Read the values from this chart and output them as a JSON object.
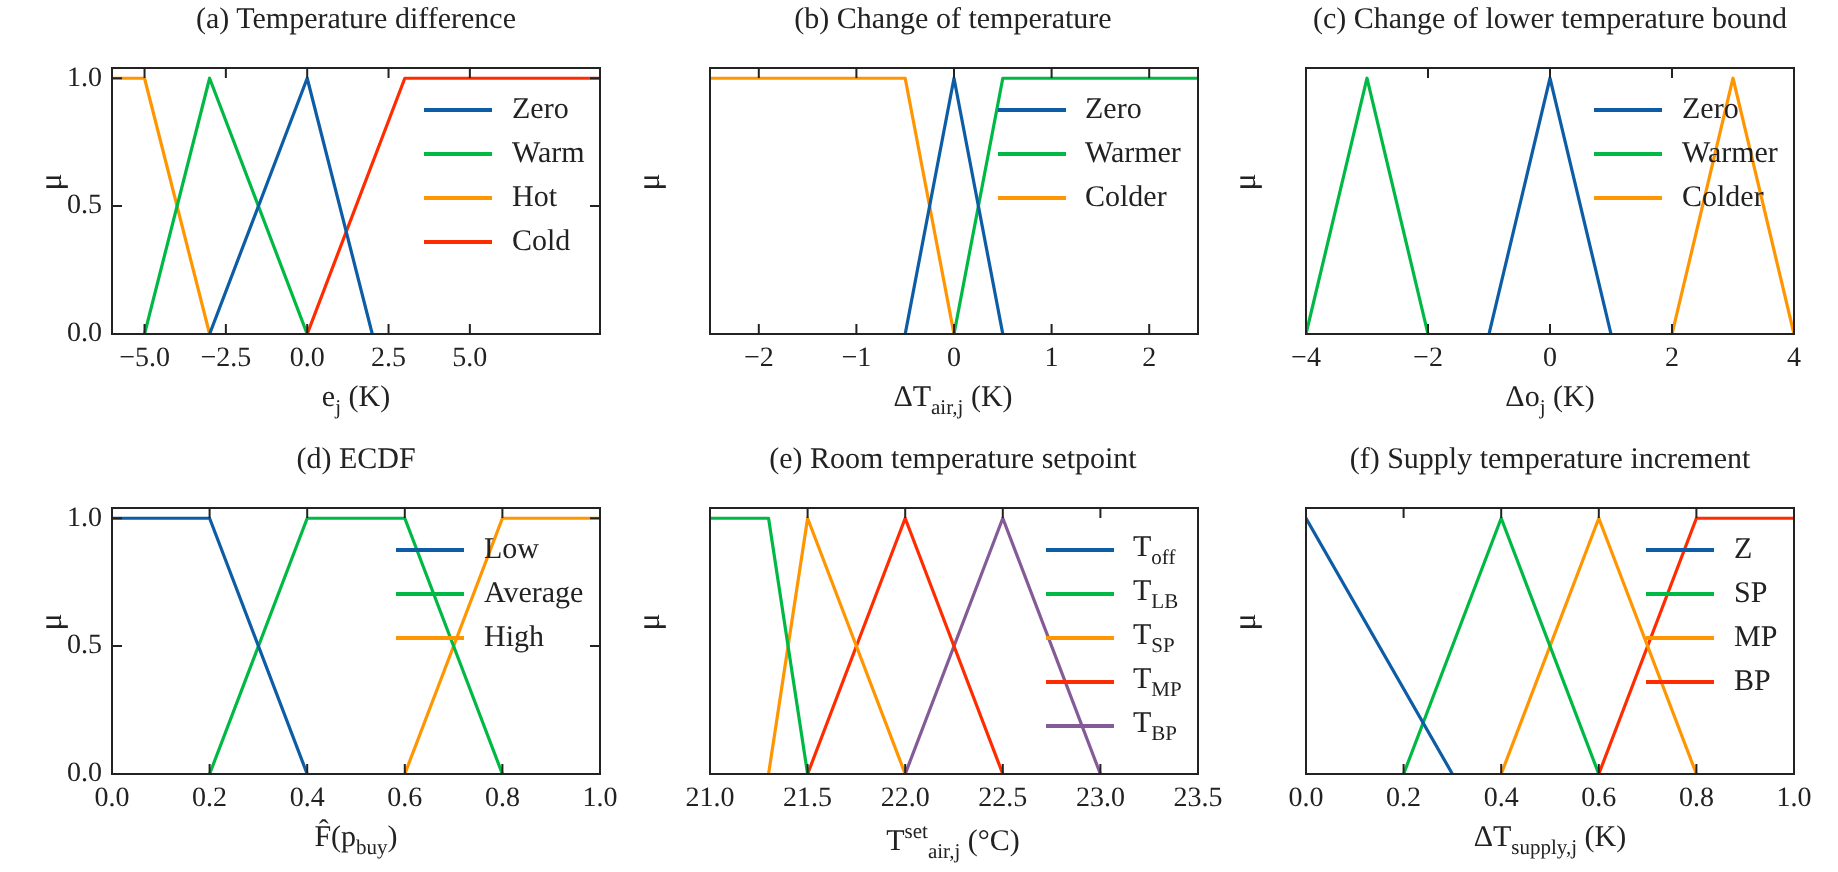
{
  "chart_data": [
    {
      "type": "line",
      "title": "(a) Temperature difference",
      "xlabel": "e$_{j}$ (K)",
      "ylabel": "μ",
      "xlim": [
        -6,
        9
      ],
      "xticks": [
        {
          "value": -5,
          "label": "−5.0"
        },
        {
          "value": -2.5,
          "label": "−2.5"
        },
        {
          "value": 0,
          "label": "0.0"
        },
        {
          "value": 2.5,
          "label": "2.5"
        },
        {
          "value": 5,
          "label": "5.0"
        }
      ],
      "ylim": [
        0,
        1.04
      ],
      "yticks": [
        {
          "value": 0,
          "label": "0.0"
        },
        {
          "value": 0.5,
          "label": "0.5"
        },
        {
          "value": 1,
          "label": "1.0"
        }
      ],
      "legend": "top right",
      "line_style": "solid",
      "series": [
        {
          "name": "Zero",
          "color": "#0c5da5",
          "x": [
            -3,
            0,
            2
          ],
          "values": [
            0,
            1,
            0
          ]
        },
        {
          "name": "Warm",
          "color": "#00b945",
          "x": [
            -5,
            -3,
            0
          ],
          "values": [
            0,
            1,
            0
          ]
        },
        {
          "name": "Hot",
          "color": "#ff9500",
          "x": [
            -6,
            -5,
            -3
          ],
          "values": [
            1,
            1,
            0
          ]
        },
        {
          "name": "Cold",
          "color": "#ff2c00",
          "x": [
            0,
            3,
            9
          ],
          "values": [
            0,
            1,
            1
          ]
        }
      ]
    },
    {
      "type": "line",
      "title": "(b) Change of temperature",
      "xlabel": "ΔT$_{air,j}$ (K)",
      "ylabel": "μ",
      "xlim": [
        -2.5,
        2.5
      ],
      "xticks": [
        {
          "value": -2,
          "label": "−2"
        },
        {
          "value": -1,
          "label": "−1"
        },
        0,
        1,
        2
      ],
      "ylim": [
        0,
        1.04
      ],
      "tick_labels": "x",
      "legend": "top right",
      "line_style": "solid",
      "series": [
        {
          "name": "Zero",
          "color": "#0c5da5",
          "x": [
            -0.5,
            0,
            0.5
          ],
          "values": [
            0,
            1,
            0
          ]
        },
        {
          "name": "Warmer",
          "color": "#00b945",
          "x": [
            0,
            0.5,
            2.5
          ],
          "values": [
            0,
            1,
            1
          ]
        },
        {
          "name": "Colder",
          "color": "#ff9500",
          "x": [
            -2.5,
            -0.5,
            0
          ],
          "values": [
            1,
            1,
            0
          ]
        }
      ]
    },
    {
      "type": "line",
      "title": "(c) Change of lower temperature bound",
      "xlabel": "Δo$_{j}$ (K)",
      "ylabel": "μ",
      "xlim": [
        -4,
        4
      ],
      "xticks": [
        {
          "value": -4,
          "label": "−4"
        },
        {
          "value": -2,
          "label": "−2"
        },
        0,
        2,
        4
      ],
      "ylim": [
        0,
        1.04
      ],
      "tick_labels": "x",
      "legend": "top right",
      "line_style": "solid",
      "series": [
        {
          "name": "Zero",
          "color": "#0c5da5",
          "x": [
            -1,
            0,
            1
          ],
          "values": [
            0,
            1,
            0
          ]
        },
        {
          "name": "Warmer",
          "color": "#00b945",
          "x": [
            -4,
            -3,
            -2
          ],
          "values": [
            0,
            1,
            0
          ]
        },
        {
          "name": "Colder",
          "color": "#ff9500",
          "x": [
            2,
            3,
            4
          ],
          "values": [
            0,
            1,
            0
          ]
        }
      ]
    },
    {
      "type": "line",
      "title": "(d) ECDF",
      "xlabel": "F̂(p$_{buy}$)",
      "ylabel": "μ",
      "xlim": [
        0,
        1
      ],
      "xticks": [
        {
          "value": 0,
          "label": "0.0"
        },
        0.2,
        0.4,
        0.6,
        0.8,
        {
          "value": 1,
          "label": "1.0"
        }
      ],
      "ylim": [
        0,
        1.04
      ],
      "yticks": [
        {
          "value": 0,
          "label": "0.0"
        },
        {
          "value": 0.5,
          "label": "0.5"
        },
        {
          "value": 1,
          "label": "1.0"
        }
      ],
      "legend": "top right",
      "line_style": "solid",
      "series": [
        {
          "name": "Low",
          "color": "#0c5da5",
          "x": [
            0,
            0.2,
            0.4
          ],
          "values": [
            1,
            1,
            0
          ]
        },
        {
          "name": "Average",
          "color": "#00b945",
          "x": [
            0.2,
            0.4,
            0.6,
            0.8
          ],
          "values": [
            0,
            1,
            1,
            0
          ]
        },
        {
          "name": "High",
          "color": "#ff9500",
          "x": [
            0.6,
            0.8,
            1
          ],
          "values": [
            0,
            1,
            1
          ]
        }
      ]
    },
    {
      "type": "line",
      "title": "(e) Room temperature setpoint",
      "xlabel": "T$^{set}$$_{air,j}$ (°C)",
      "ylabel": "μ",
      "xlim": [
        21,
        23.5
      ],
      "xticks": [
        {
          "value": 21,
          "label": "21.0"
        },
        21.5,
        {
          "value": 22,
          "label": "22.0"
        },
        22.5,
        {
          "value": 23,
          "label": "23.0"
        },
        23.5
      ],
      "ylim": [
        0,
        1.04
      ],
      "tick_labels": "x",
      "legend": "top right",
      "line_style": "solid",
      "series": [
        {
          "name": "T$_{off}$",
          "color": "#0c5da5"
        },
        {
          "name": "T$_{LB}$",
          "color": "#00b945",
          "x": [
            21,
            21.3,
            21.5
          ],
          "values": [
            1,
            1,
            0
          ]
        },
        {
          "name": "T$_{SP}$",
          "color": "#ff9500",
          "x": [
            21.3,
            21.5,
            22
          ],
          "values": [
            0,
            1,
            0
          ]
        },
        {
          "name": "T$_{MP}$",
          "color": "#ff2c00",
          "x": [
            21.5,
            22,
            22.5
          ],
          "values": [
            0,
            1,
            0
          ]
        },
        {
          "name": "T$_{BP}$",
          "color": "#845b97",
          "x": [
            22,
            22.5,
            23
          ],
          "values": [
            0,
            1,
            0
          ]
        }
      ]
    },
    {
      "type": "line",
      "title": "(f) Supply temperature increment",
      "xlabel": "ΔT$_{supply,j}$ (K)",
      "ylabel": "μ",
      "xlim": [
        0,
        1
      ],
      "xticks": [
        {
          "value": 0,
          "label": "0.0"
        },
        0.2,
        0.4,
        0.6,
        0.8,
        {
          "value": 1,
          "label": "1.0"
        }
      ],
      "ylim": [
        0,
        1.04
      ],
      "tick_labels": "x",
      "legend": "top right",
      "line_style": "solid",
      "series": [
        {
          "name": "Z",
          "color": "#0c5da5",
          "x": [
            0,
            0.3
          ],
          "values": [
            1,
            0
          ]
        },
        {
          "name": "SP",
          "color": "#00b945",
          "x": [
            0.2,
            0.4,
            0.6
          ],
          "values": [
            0,
            1,
            0
          ]
        },
        {
          "name": "MP",
          "color": "#ff9500",
          "x": [
            0.4,
            0.6,
            0.8
          ],
          "values": [
            0,
            1,
            0
          ]
        },
        {
          "name": "BP",
          "color": "#ff2c00",
          "x": [
            0.6,
            0.8,
            1
          ],
          "values": [
            0,
            1,
            1
          ]
        }
      ]
    }
  ]
}
